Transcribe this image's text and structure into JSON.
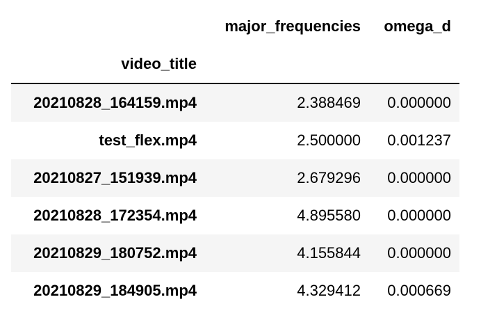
{
  "table": {
    "columns": [
      "major_frequencies",
      "omega_d"
    ],
    "index_name": "video_title",
    "rows": [
      {
        "index": "20210828_164159.mp4",
        "major_frequencies": "2.388469",
        "omega_d": "0.000000"
      },
      {
        "index": "test_flex.mp4",
        "major_frequencies": "2.500000",
        "omega_d": "0.001237"
      },
      {
        "index": "20210827_151939.mp4",
        "major_frequencies": "2.679296",
        "omega_d": "0.000000"
      },
      {
        "index": "20210828_172354.mp4",
        "major_frequencies": "4.895580",
        "omega_d": "0.000000"
      },
      {
        "index": "20210829_180752.mp4",
        "major_frequencies": "4.155844",
        "omega_d": "0.000000"
      },
      {
        "index": "20210829_184905.mp4",
        "major_frequencies": "4.329412",
        "omega_d": "0.000669"
      }
    ]
  },
  "colors": {
    "stripe": "#f5f5f5",
    "rule": "#000000",
    "text": "#000000"
  }
}
